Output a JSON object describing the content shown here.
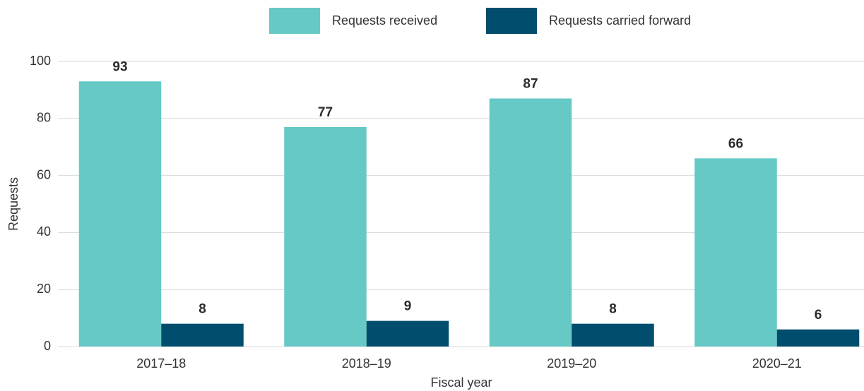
{
  "chart_data": {
    "type": "bar",
    "x_label": "Fiscal year",
    "y_label": "Requests",
    "categories": [
      "2017–18",
      "2018–19",
      "2019–20",
      "2020–21"
    ],
    "series": [
      {
        "name": "Requests received",
        "color": "#66c9c6",
        "values": [
          93,
          77,
          87,
          66
        ]
      },
      {
        "name": "Requests carried forward",
        "color": "#004d6e",
        "values": [
          8,
          9,
          8,
          6
        ]
      }
    ],
    "ylim": [
      0,
      100
    ],
    "yticks": [
      0,
      20,
      40,
      60,
      80,
      100
    ],
    "grid": true,
    "legend": "top"
  }
}
